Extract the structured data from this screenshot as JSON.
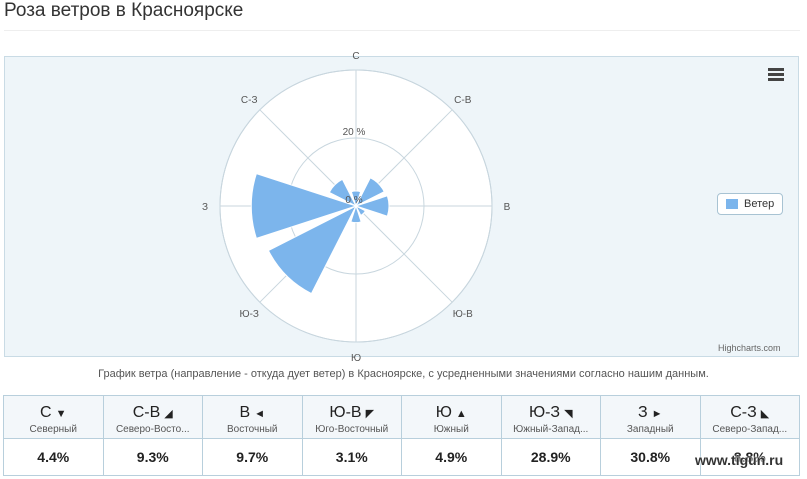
{
  "title": "Роза ветров в Красноярске",
  "chart_data": {
    "type": "polar-column",
    "categories": [
      "С",
      "С-В",
      "В",
      "Ю-В",
      "Ю",
      "Ю-З",
      "З",
      "С-З"
    ],
    "series": [
      {
        "name": "Ветер",
        "values": [
          4.4,
          9.3,
          9.7,
          3.1,
          4.9,
          28.9,
          30.8,
          8.8
        ],
        "color": "#7cb5ec"
      }
    ],
    "ylim": [
      0,
      40
    ],
    "ytick_labels": [
      "0 %",
      "20 %"
    ],
    "grid": true,
    "legend": "right"
  },
  "legend_label": "Ветер",
  "credits": "Highcharts.com",
  "caption": "График ветра (направление - откуда дует ветер) в Красноярске, с усредненными значениями согласно нашим данным.",
  "table": {
    "columns": [
      {
        "short": "С",
        "arrow": "▼",
        "full": "Северный",
        "value": "4.4%"
      },
      {
        "short": "С-В",
        "arrow": "◢",
        "full": "Северо-Восто...",
        "value": "9.3%"
      },
      {
        "short": "В",
        "arrow": "◄",
        "full": "Восточный",
        "value": "9.7%"
      },
      {
        "short": "Ю-В",
        "arrow": "◤",
        "full": "Юго-Восточный",
        "value": "3.1%"
      },
      {
        "short": "Ю",
        "arrow": "▲",
        "full": "Южный",
        "value": "4.9%"
      },
      {
        "short": "Ю-З",
        "arrow": "◥",
        "full": "Южный-Запад...",
        "value": "28.9%"
      },
      {
        "short": "З",
        "arrow": "►",
        "full": "Западный",
        "value": "30.8%"
      },
      {
        "short": "С-З",
        "arrow": "◣",
        "full": "Северо-Запад...",
        "value": "8.8%"
      }
    ]
  },
  "watermark": "www.tigun.ru"
}
